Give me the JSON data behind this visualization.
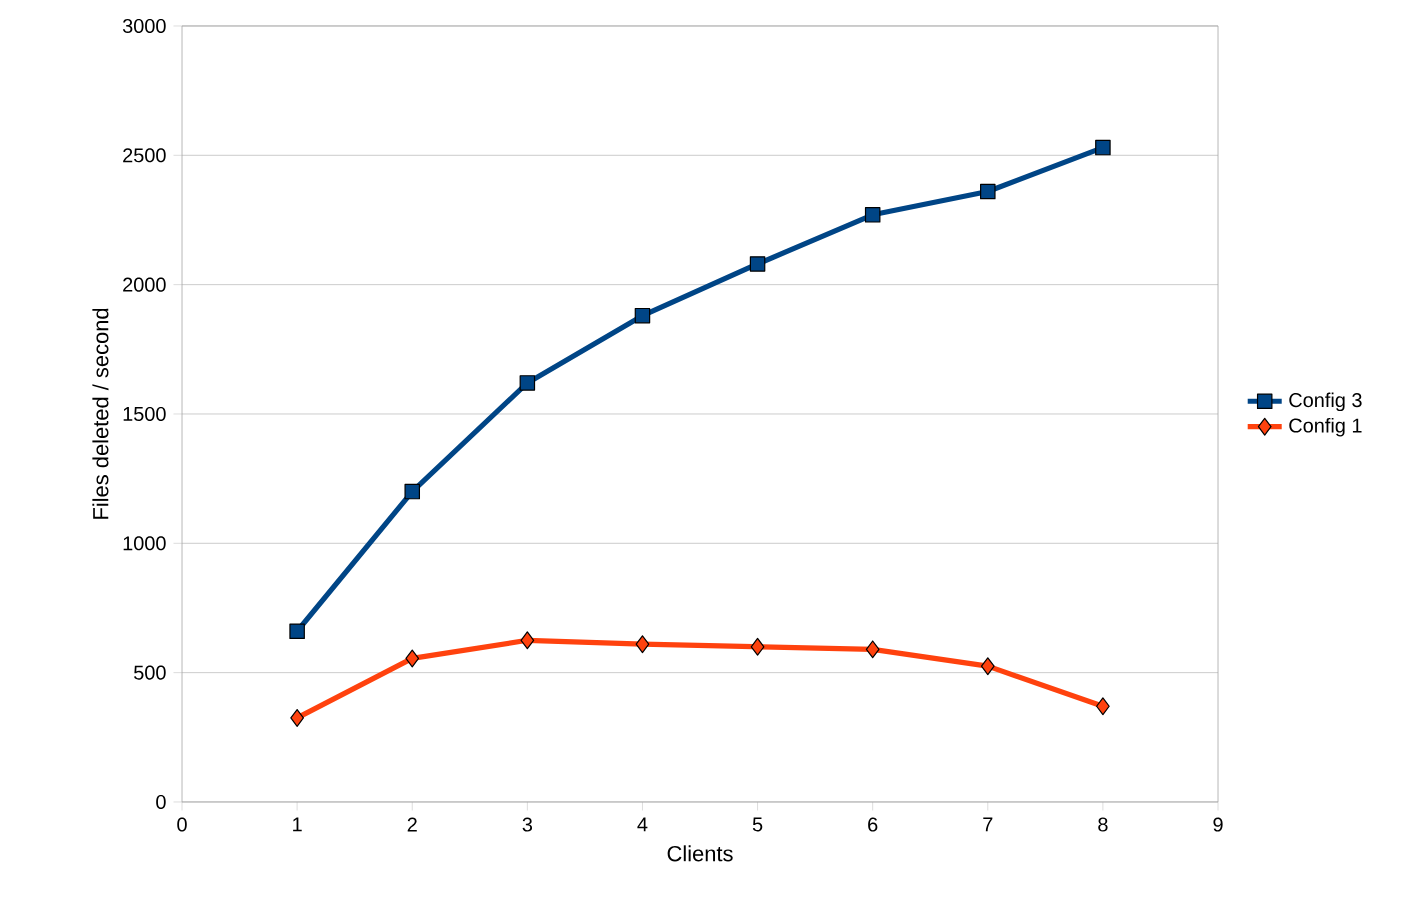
{
  "chart_data": {
    "type": "line",
    "xlabel": "Clients",
    "ylabel": "Files deleted / second",
    "x": [
      1,
      2,
      3,
      4,
      5,
      6,
      7,
      8
    ],
    "series": [
      {
        "name": "Config 3",
        "color": "#004586",
        "marker": "square",
        "values": [
          660,
          1200,
          1620,
          1880,
          2080,
          2270,
          2360,
          2530
        ]
      },
      {
        "name": "Config 1",
        "color": "#ff420e",
        "marker": "diamond",
        "values": [
          325,
          555,
          625,
          610,
          600,
          590,
          525,
          370
        ]
      }
    ],
    "xlim": [
      0,
      9
    ],
    "xticks": [
      0,
      1,
      2,
      3,
      4,
      5,
      6,
      7,
      8,
      9
    ],
    "ylim": [
      0,
      3000
    ],
    "yticks": [
      0,
      500,
      1000,
      1500,
      2000,
      2500,
      3000
    ],
    "grid": "y",
    "legend": "right",
    "line_style": "solid"
  }
}
